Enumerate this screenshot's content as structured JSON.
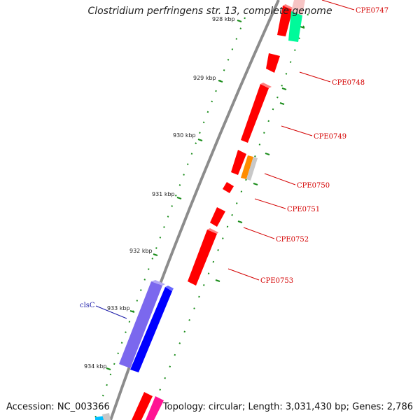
{
  "title": "Clostridium perfringens str. 13, complete genome",
  "footer": {
    "accession": "Accession: NC_003366",
    "summary": "Topology: circular; Length: 3,031,430 bp; Genes: 2,786"
  },
  "colors": {
    "backbone": "#8c8c8c",
    "tick": "#1a8c1a",
    "gene_red": "#ff0000",
    "gene_blue": "#0000ff",
    "gene_slate": "#7b68ee",
    "gene_orange": "#ff8c00",
    "gene_teal": "#00fa9a",
    "gene_pink": "#ff1493",
    "gene_grey": "#c8c8c8",
    "label_red": "#d40000",
    "label_blue": "#1a1aa8"
  },
  "kbp_labels": [
    "928 kbp",
    "929 kbp",
    "930 kbp",
    "931 kbp",
    "932 kbp",
    "933 kbp",
    "934 kbp"
  ],
  "gene_labels": [
    {
      "text": "CPE0747",
      "color": "red"
    },
    {
      "text": "CPE0748",
      "color": "red"
    },
    {
      "text": "CPE0749",
      "color": "red"
    },
    {
      "text": "CPE0750",
      "color": "red"
    },
    {
      "text": "CPE0751",
      "color": "red"
    },
    {
      "text": "CPE0752",
      "color": "red"
    },
    {
      "text": "CPE0753",
      "color": "red"
    },
    {
      "text": "clsC",
      "color": "blue"
    }
  ]
}
